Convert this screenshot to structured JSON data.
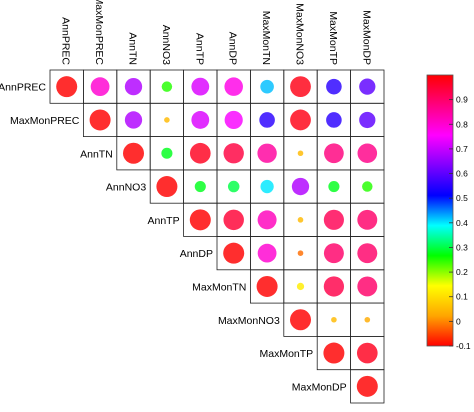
{
  "chart_data": {
    "type": "heatmap",
    "layout": "upper-triangle correlogram with circle markers",
    "variables": [
      "AnnPREC",
      "MaxMonPREC",
      "AnnTN",
      "AnnNO3",
      "AnnTP",
      "AnnDP",
      "MaxMonTN",
      "MaxMonNO3",
      "MaxMonTP",
      "MaxMonDP"
    ],
    "matrix": [
      [
        1.0,
        0.8,
        0.68,
        0.25,
        0.72,
        0.78,
        0.42,
        0.98,
        0.55,
        0.6
      ],
      [
        null,
        1.0,
        0.68,
        0.05,
        0.72,
        0.75,
        0.55,
        0.98,
        0.55,
        0.6
      ],
      [
        null,
        null,
        1.0,
        0.28,
        0.97,
        0.94,
        0.85,
        0.05,
        0.88,
        0.87
      ],
      [
        null,
        null,
        null,
        1.0,
        0.28,
        0.3,
        0.4,
        0.68,
        0.28,
        0.25
      ],
      [
        null,
        null,
        null,
        null,
        1.0,
        0.95,
        0.82,
        0.05,
        0.92,
        0.9
      ],
      [
        null,
        null,
        null,
        null,
        null,
        1.0,
        0.8,
        -0.02,
        0.9,
        0.9
      ],
      [
        null,
        null,
        null,
        null,
        null,
        null,
        1.0,
        0.12,
        0.93,
        0.9
      ],
      [
        null,
        null,
        null,
        null,
        null,
        null,
        null,
        1.0,
        0.05,
        0.03
      ],
      [
        null,
        null,
        null,
        null,
        null,
        null,
        null,
        null,
        1.0,
        0.97
      ],
      [
        null,
        null,
        null,
        null,
        null,
        null,
        null,
        null,
        null,
        1.0
      ]
    ],
    "colorbar": {
      "range": [
        -0.1,
        1.0
      ],
      "ticks": [
        "-0.1",
        "0",
        "0.1",
        "0.2",
        "0.3",
        "0.4",
        "0.5",
        "0.6",
        "0.7",
        "0.8",
        "0.9"
      ],
      "tick_values": [
        -0.1,
        0,
        0.1,
        0.2,
        0.3,
        0.4,
        0.5,
        0.6,
        0.7,
        0.8,
        0.9
      ],
      "colors_low_to_high": [
        "#ff0000",
        "#ffa500",
        "#ffff00",
        "#00ff00",
        "#00ffff",
        "#0000ff",
        "#8000ff",
        "#ff00ff",
        "#ff0080",
        "#ff0000"
      ]
    },
    "marker_size_encodes": "absolute correlation",
    "grid": true,
    "legend_position": "right"
  }
}
